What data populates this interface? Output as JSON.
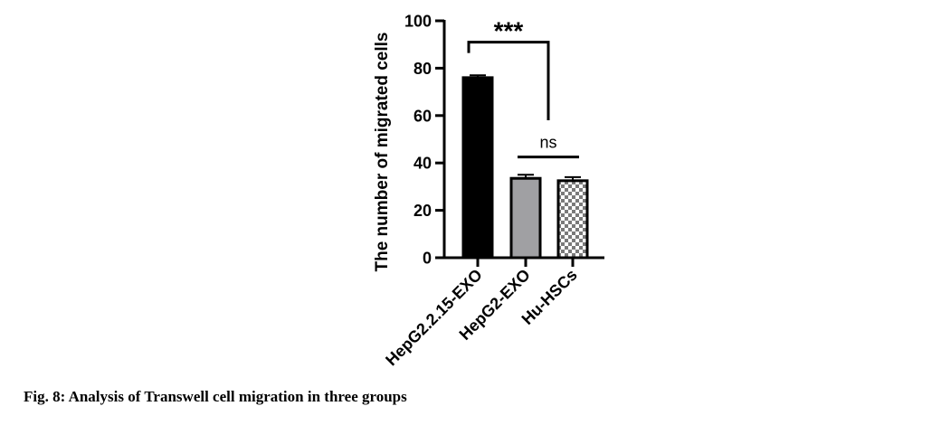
{
  "caption": "Fig. 8: Analysis of Transwell cell migration in three groups",
  "chart_data": {
    "type": "bar",
    "ylabel": "The number of migrated cells",
    "ylim": [
      0,
      100
    ],
    "yticks": [
      0,
      20,
      40,
      60,
      80,
      100
    ],
    "categories": [
      "HepG2.2.15-EXO",
      "HepG2-EXO",
      "Hu-HSCs"
    ],
    "values": [
      76,
      33.5,
      32.5
    ],
    "errors": [
      1,
      1.5,
      1.5
    ],
    "fills": [
      "#000000",
      "#a0a0a3",
      "checker"
    ],
    "significance": [
      {
        "label": "***",
        "from": 0,
        "to": 1,
        "y": 91
      },
      {
        "label": "ns",
        "from": 1,
        "to": 2,
        "y": 42.5
      }
    ]
  }
}
